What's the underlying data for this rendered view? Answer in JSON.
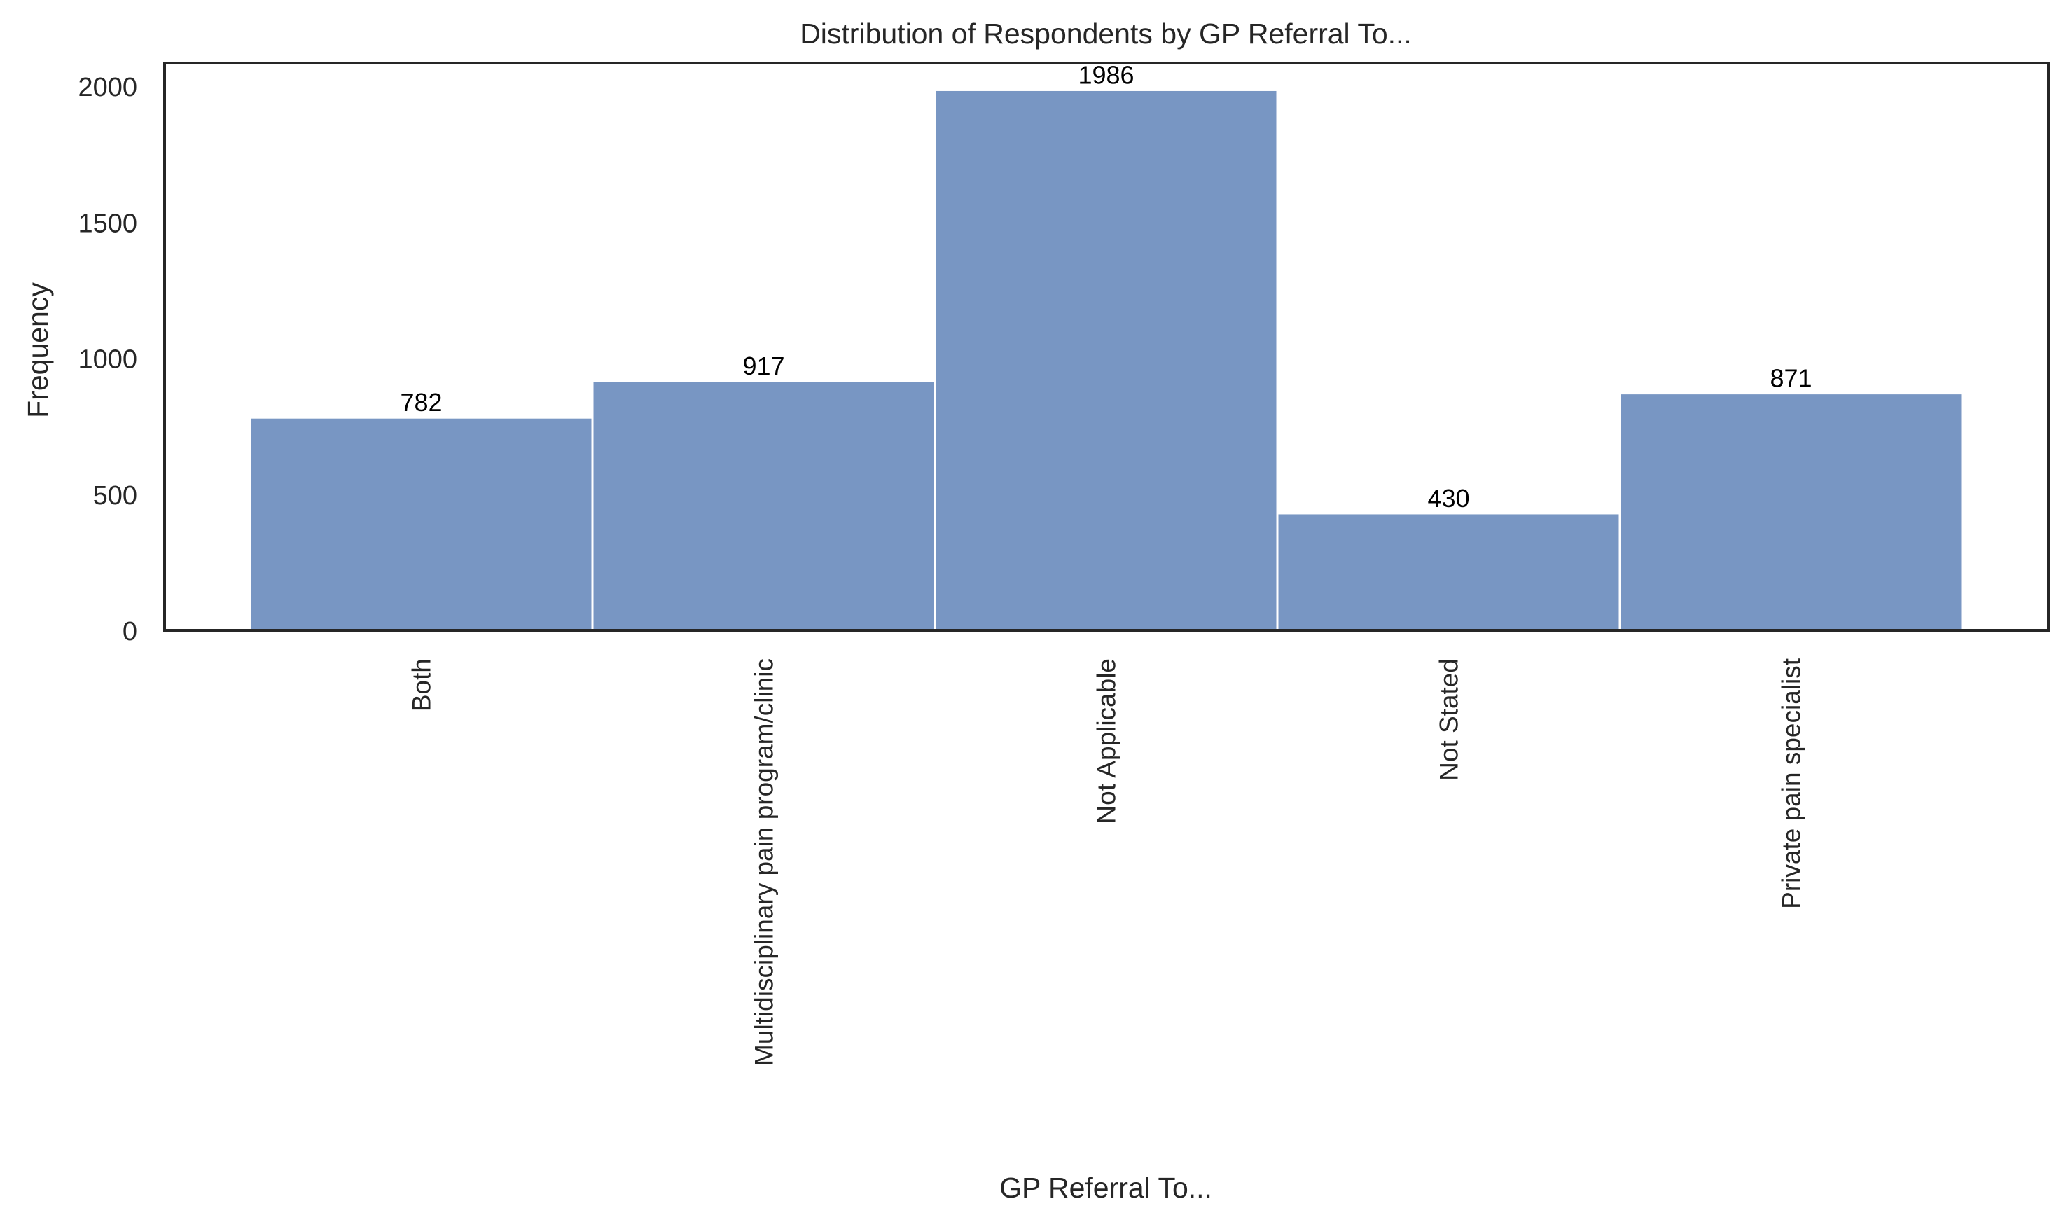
{
  "chart_data": {
    "type": "bar",
    "title": "Distribution of Respondents by GP Referral To...",
    "xlabel": "GP Referral To...",
    "ylabel": "Frequency",
    "categories": [
      "Both",
      "Multidisciplinary pain program/clinic",
      "Not Applicable",
      "Not Stated",
      "Private pain specialist"
    ],
    "values": [
      782,
      917,
      1986,
      430,
      871
    ],
    "data_labels": [
      "782",
      "917",
      "1986",
      "430",
      "871"
    ],
    "yticks": [
      0,
      500,
      1000,
      1500,
      2000
    ],
    "ytick_labels": [
      "0",
      "500",
      "1000",
      "1500",
      "2000"
    ],
    "ylim": [
      0,
      2085
    ],
    "grid": false,
    "legend": "none",
    "colors": {
      "bar": "#7896c3",
      "bar_edge": "#ffffff",
      "axis": "#262626",
      "text": "#262626",
      "data_label": "#000000"
    }
  }
}
